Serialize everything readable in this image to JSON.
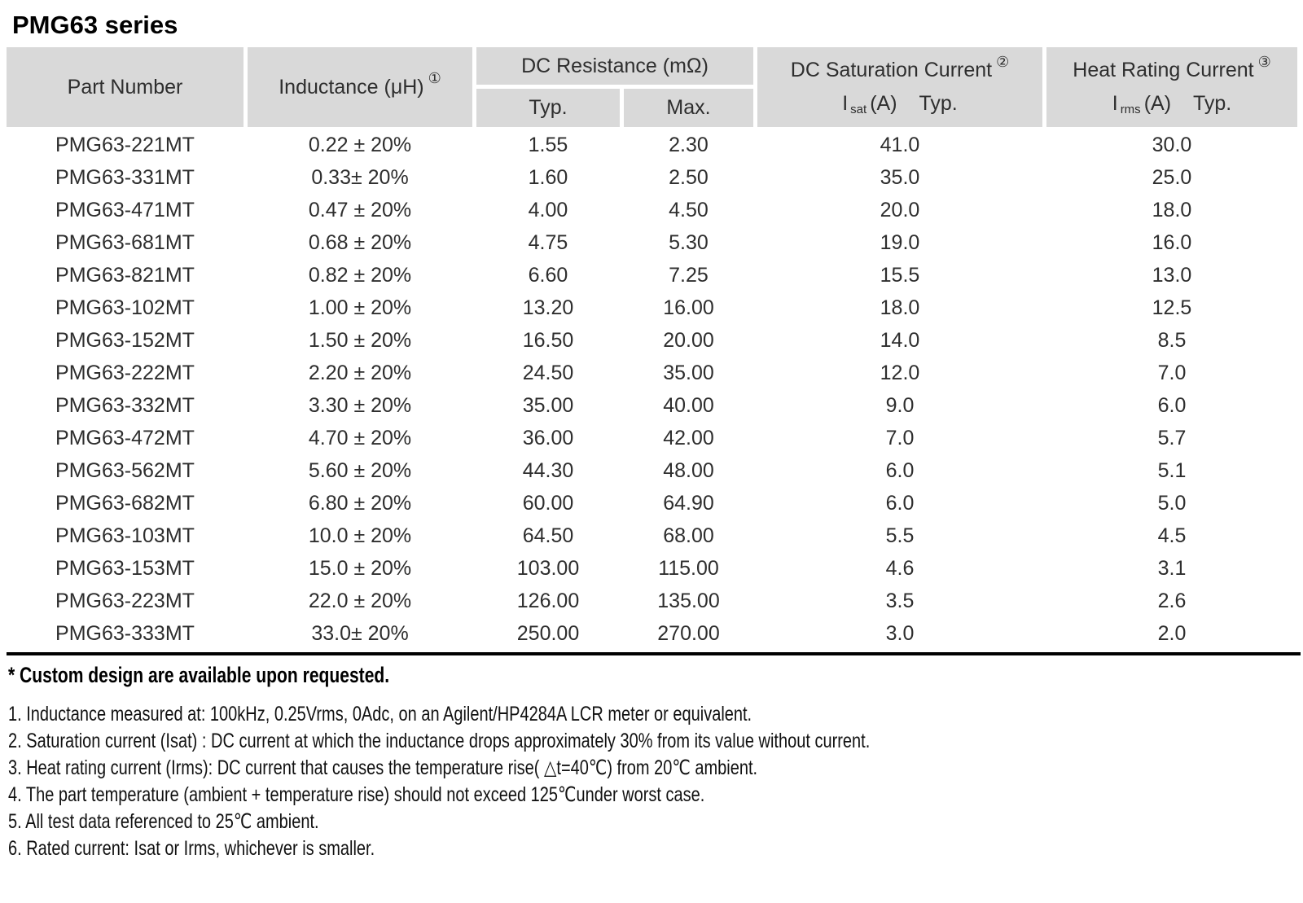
{
  "title": "PMG63 series",
  "colors": {
    "header_bg": "#d9d9d9",
    "body_bg": "#ffffff",
    "rule": "#000000",
    "text": "#2e2e2e"
  },
  "table": {
    "headers": {
      "part_number": "Part Number",
      "inductance": "Inductance (μH)",
      "inductance_note": "①",
      "dc_resistance": "DC Resistance (mΩ)",
      "dcr_typ": "Typ.",
      "dcr_max": "Max.",
      "dc_saturation": "DC Saturation Current",
      "dc_saturation_note": "②",
      "isat_symbol": "I",
      "isat_sub": "sat",
      "isat_unit": "(A)",
      "isat_typ": "Typ.",
      "heat_rating": "Heat Rating Current",
      "heat_rating_note": "③",
      "irms_symbol": "I",
      "irms_sub": "rms",
      "irms_unit": "(A)",
      "irms_typ": "Typ."
    },
    "rows": [
      {
        "part": "PMG63-221MT",
        "inductance": "0.22 ± 20%",
        "typ": "1.55",
        "max": "2.30",
        "isat": "41.0",
        "irms": "30.0"
      },
      {
        "part": "PMG63-331MT",
        "inductance": "0.33± 20%",
        "typ": "1.60",
        "max": "2.50",
        "isat": "35.0",
        "irms": "25.0"
      },
      {
        "part": "PMG63-471MT",
        "inductance": "0.47 ± 20%",
        "typ": "4.00",
        "max": "4.50",
        "isat": "20.0",
        "irms": "18.0"
      },
      {
        "part": "PMG63-681MT",
        "inductance": "0.68 ± 20%",
        "typ": "4.75",
        "max": "5.30",
        "isat": "19.0",
        "irms": "16.0"
      },
      {
        "part": "PMG63-821MT",
        "inductance": "0.82 ± 20%",
        "typ": "6.60",
        "max": "7.25",
        "isat": "15.5",
        "irms": "13.0"
      },
      {
        "part": "PMG63-102MT",
        "inductance": "1.00 ± 20%",
        "typ": "13.20",
        "max": "16.00",
        "isat": "18.0",
        "irms": "12.5"
      },
      {
        "part": "PMG63-152MT",
        "inductance": "1.50 ± 20%",
        "typ": "16.50",
        "max": "20.00",
        "isat": "14.0",
        "irms": "8.5"
      },
      {
        "part": "PMG63-222MT",
        "inductance": "2.20 ± 20%",
        "typ": "24.50",
        "max": "35.00",
        "isat": "12.0",
        "irms": "7.0"
      },
      {
        "part": "PMG63-332MT",
        "inductance": "3.30 ± 20%",
        "typ": "35.00",
        "max": "40.00",
        "isat": "9.0",
        "irms": "6.0"
      },
      {
        "part": "PMG63-472MT",
        "inductance": "4.70 ± 20%",
        "typ": "36.00",
        "max": "42.00",
        "isat": "7.0",
        "irms": "5.7"
      },
      {
        "part": "PMG63-562MT",
        "inductance": "5.60 ± 20%",
        "typ": "44.30",
        "max": "48.00",
        "isat": "6.0",
        "irms": "5.1"
      },
      {
        "part": "PMG63-682MT",
        "inductance": "6.80 ± 20%",
        "typ": "60.00",
        "max": "64.90",
        "isat": "6.0",
        "irms": "5.0"
      },
      {
        "part": "PMG63-103MT",
        "inductance": "10.0 ± 20%",
        "typ": "64.50",
        "max": "68.00",
        "isat": "5.5",
        "irms": "4.5"
      },
      {
        "part": "PMG63-153MT",
        "inductance": "15.0 ± 20%",
        "typ": "103.00",
        "max": "115.00",
        "isat": "4.6",
        "irms": "3.1"
      },
      {
        "part": "PMG63-223MT",
        "inductance": "22.0 ± 20%",
        "typ": "126.00",
        "max": "135.00",
        "isat": "3.5",
        "irms": "2.6"
      },
      {
        "part": "PMG63-333MT",
        "inductance": "33.0± 20%",
        "typ": "250.00",
        "max": "270.00",
        "isat": "3.0",
        "irms": "2.0"
      }
    ]
  },
  "footnotes": {
    "star": "* Custom design are available upon requested.",
    "items": [
      "1. Inductance measured at: 100kHz, 0.25Vrms, 0Adc, on an Agilent/HP4284A LCR meter or equivalent.",
      "2. Saturation current (Isat) : DC current at which the inductance drops approximately 30% from its value without current.",
      "3. Heat rating current (Irms): DC current that causes the temperature rise( △t=40℃) from 20℃ ambient.",
      "4. The part temperature (ambient + temperature rise) should not exceed 125℃under worst case.",
      "5. All test data referenced to 25℃ ambient.",
      "6. Rated current: Isat or Irms, whichever is smaller."
    ]
  }
}
